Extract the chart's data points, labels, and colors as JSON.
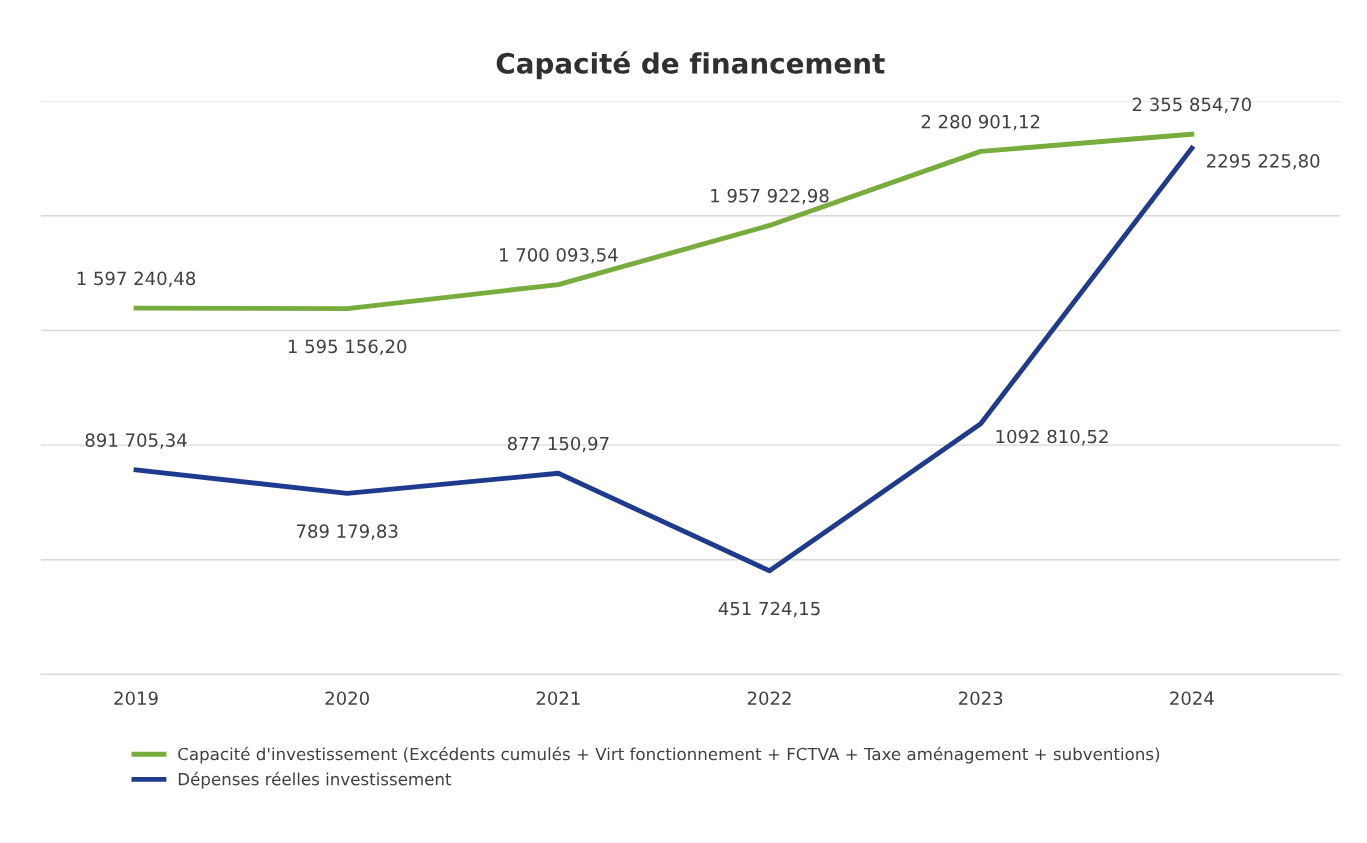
{
  "chart_data": {
    "type": "line",
    "title": "Capacité de financement",
    "categories": [
      "2019",
      "2020",
      "2021",
      "2022",
      "2023",
      "2024"
    ],
    "series": [
      {
        "name": "Capacité d'investissement (Excédents cumulés + Virt fonctionnement + FCTVA + Taxe aménagement + subventions)",
        "color": "#78ac3c",
        "values": [
          1597240.48,
          1595156.2,
          1700093.54,
          1957922.98,
          2280901.12,
          2355854.7
        ],
        "value_labels": [
          "1 597 240,48",
          "1 595 156,20",
          "1 700 093,54",
          "1 957 922,98",
          "2 280 901,12",
          "2 355 854,70"
        ]
      },
      {
        "name": "Dépenses réelles investissement",
        "color": "#1f3b8f",
        "values": [
          891705.34,
          789179.83,
          877150.97,
          451724.15,
          1092810.52,
          2295225.8
        ],
        "value_labels": [
          "891 705,34",
          "789 179,83",
          "877 150,97",
          "451 724,15",
          "1092 810,52",
          "2295 225,80"
        ]
      }
    ],
    "ylim": [
      0,
      2500000
    ],
    "yticks": [
      {
        "value": 0,
        "label": null
      },
      {
        "value": 500000,
        "label": null
      },
      {
        "value": 1000000,
        "label": null
      },
      {
        "value": 1500000,
        "label": null
      },
      {
        "value": 2000000,
        "label": null
      },
      {
        "value": 2500000,
        "label": null
      }
    ],
    "tick_labels": "x",
    "grid": "y",
    "legend": "bottom",
    "marker": "none",
    "line_style": "solid"
  }
}
